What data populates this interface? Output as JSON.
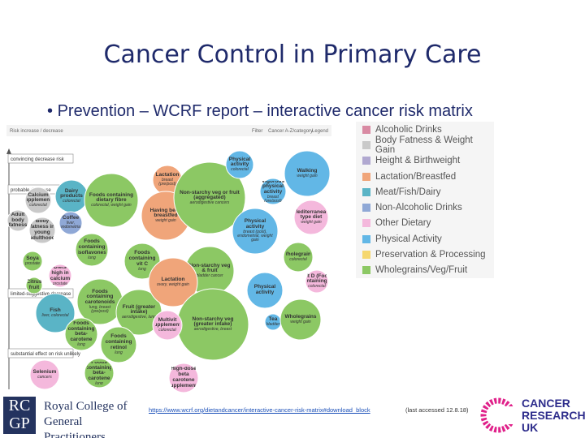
{
  "slide": {
    "title": "Cancer Control in Primary Care",
    "bullet": "Prevention – WCRF report – interactive cancer risk matrix",
    "matrix": {
      "toolbar": {
        "tab": "Risk increase / decrease",
        "filter": "Filter",
        "category": "Cancer A-Z/category",
        "legend": "Legend"
      },
      "groups": [
        "convincing decrease risk",
        "probable decrease",
        "limited-suggestive decrease",
        "substantial effect on risk unlikely"
      ],
      "bubbles": [
        {
          "label": "Dairy products",
          "sub": "colorectal",
          "color": "#5ab4c6"
        },
        {
          "label": "Calcium supplements",
          "sub": "colorectal",
          "color": "#c9c9c9"
        },
        {
          "label": "Adult body fatness",
          "sub": "",
          "color": "#c9c9c9"
        },
        {
          "label": "Coffee",
          "sub": "liver, endometrial",
          "color": "#8fa8d6"
        },
        {
          "label": "Body fatness in young adulthood",
          "sub": "",
          "color": "#c9c9c9"
        },
        {
          "label": "Foods containing dietary fibre",
          "sub": "colorectal, weight gain",
          "color": "#8cc864"
        },
        {
          "label": "Lactation",
          "sub": "breast (pre/post)",
          "color": "#f0a57a"
        },
        {
          "label": "Having been breastfed",
          "sub": "weight gain",
          "color": "#f0a57a"
        },
        {
          "label": "Non-starchy veg or fruit (aggregated)",
          "sub": "aerodigestive cancers",
          "color": "#8cc864"
        },
        {
          "label": "Physical activity",
          "sub": "colorectal",
          "color": "#62b7e6"
        },
        {
          "label": "Walking",
          "sub": "weight gain",
          "color": "#62b7e6"
        },
        {
          "label": "Vigorous physical activity",
          "sub": "breast (pre/post)",
          "color": "#62b7e6"
        },
        {
          "label": "Mediterranean type diet",
          "sub": "weight gain",
          "color": "#f4b8dc"
        },
        {
          "label": "Physical activity",
          "sub": "breast (post), endometrial, weight gain",
          "color": "#62b7e6"
        },
        {
          "label": "Foods containing isoflavones",
          "sub": "lung",
          "color": "#8cc864"
        },
        {
          "label": "Foods containing vit C",
          "sub": "lung",
          "color": "#8cc864"
        },
        {
          "label": "Soya",
          "sub": "prostate",
          "color": "#8cc864"
        },
        {
          "label": "Diets high in calcium",
          "sub": "prostate",
          "color": "#f4b8dc"
        },
        {
          "label": "Citrus fruit",
          "sub": "",
          "color": "#8cc864"
        },
        {
          "label": "Non-starchy veg & fruit",
          "sub": "bladder cancer",
          "color": "#8cc864"
        },
        {
          "label": "Wholegrains",
          "sub": "colorectal",
          "color": "#8cc864"
        },
        {
          "label": "Physical activity",
          "sub": "",
          "color": "#62b7e6"
        },
        {
          "label": "Vit D (Food containing...)",
          "sub": "colorectal",
          "color": "#f4b8dc"
        },
        {
          "label": "Foods containing carotenoids",
          "sub": "lung, breast (pre/post)",
          "color": "#8cc864"
        },
        {
          "label": "Fish",
          "sub": "liver, colorectal",
          "color": "#5ab4c6"
        },
        {
          "label": "Fruit (greater intake)",
          "sub": "aerodigestive, lung",
          "color": "#8cc864"
        },
        {
          "label": "Lactation",
          "sub": "ovary, weight gain",
          "color": "#f0a57a"
        },
        {
          "label": "Non-starchy veg (greater intake)",
          "sub": "aerodigestive, breast",
          "color": "#8cc864"
        },
        {
          "label": "Multivit supplements",
          "sub": "colorectal",
          "color": "#f4b8dc"
        },
        {
          "label": "Tea",
          "sub": "bladder",
          "color": "#62b7e6"
        },
        {
          "label": "Wholegrains",
          "sub": "weight gain",
          "color": "#8cc864"
        },
        {
          "label": "Foods containing beta-carotene",
          "sub": "lung",
          "color": "#8cc864"
        },
        {
          "label": "Foods containing retinol",
          "sub": "lung",
          "color": "#8cc864"
        },
        {
          "label": "High-dose beta carotene supplements",
          "sub": "",
          "color": "#f4b8dc"
        },
        {
          "label": "Selenium",
          "sub": "cancers",
          "color": "#f4b8dc"
        },
        {
          "label": "Foods containing beta-carotene",
          "sub": "lung",
          "color": "#8cc864"
        }
      ]
    },
    "legend": [
      {
        "name": "Alcoholic Drinks",
        "color": "#d98aa3"
      },
      {
        "name": "Body Fatness & Weight Gain",
        "color": "#c9c9c9"
      },
      {
        "name": "Height & Birthweight",
        "color": "#b0a8d0"
      },
      {
        "name": "Lactation/Breastfed",
        "color": "#f0a57a"
      },
      {
        "name": "Meat/Fish/Dairy",
        "color": "#5ab4c6"
      },
      {
        "name": "Non-Alcoholic Drinks",
        "color": "#8fa8d6"
      },
      {
        "name": "Other Dietary",
        "color": "#f4b8dc"
      },
      {
        "name": "Physical Activity",
        "color": "#62b7e6"
      },
      {
        "name": "Preservation & Processing",
        "color": "#f5d76e"
      },
      {
        "name": "Wholegrains/Veg/Fruit",
        "color": "#8cc864"
      }
    ],
    "link": "https://www.wcrf.org/dietandcancer/interactive-cancer-risk-matrix#download_block",
    "accessed": "(last accessed 12.8.18)",
    "logos": {
      "rcgp_top": "RC",
      "rcgp_bottom": "GP",
      "rcgp_name": "Royal College of General Practitioners",
      "cruk": "CANCER RESEARCH UK"
    }
  }
}
